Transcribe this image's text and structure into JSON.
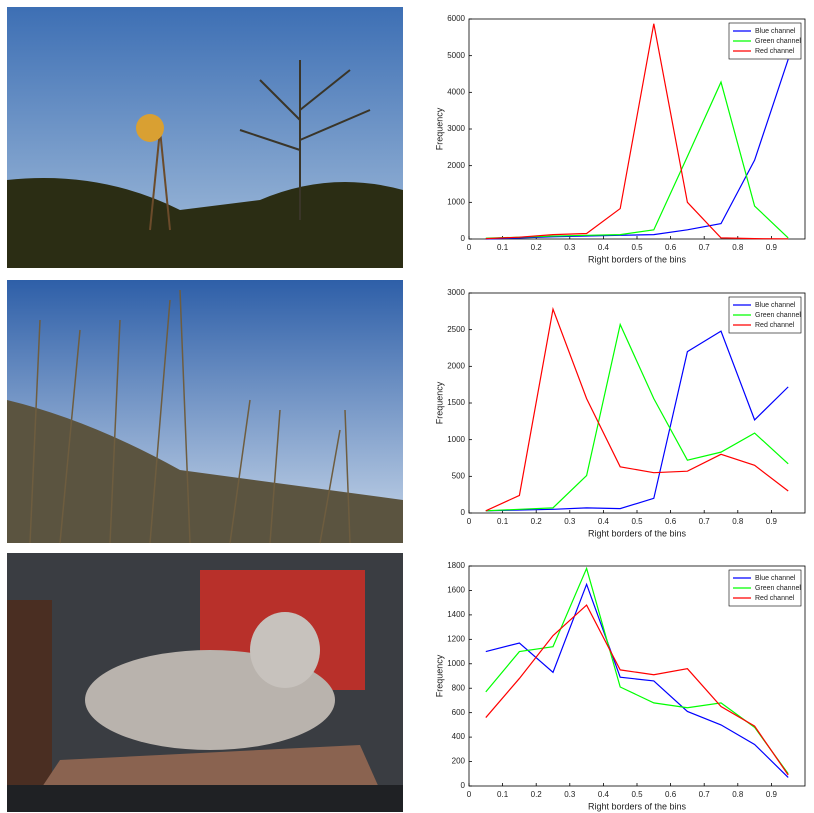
{
  "chart_data": [
    {
      "type": "line",
      "x": [
        0.05,
        0.15,
        0.25,
        0.35,
        0.45,
        0.55,
        0.65,
        0.75,
        0.85,
        0.95
      ],
      "xlabel": "Right borders of the bins",
      "ylabel": "Frequency",
      "xlim": [
        0,
        1
      ],
      "xticks": [
        0,
        0.1,
        0.2,
        0.3,
        0.4,
        0.5,
        0.6,
        0.7,
        0.8,
        0.9
      ],
      "ylim": [
        0,
        6000
      ],
      "yticks": [
        0,
        1000,
        2000,
        3000,
        4000,
        5000,
        6000
      ],
      "legend": "upper right",
      "series": [
        {
          "name": "Blue channel",
          "color": "#0000ff",
          "values": [
            0,
            30,
            60,
            80,
            100,
            120,
            250,
            420,
            2150,
            4900
          ]
        },
        {
          "name": "Green channel",
          "color": "#00ff00",
          "values": [
            20,
            50,
            80,
            100,
            120,
            250,
            2250,
            4280,
            900,
            30
          ]
        },
        {
          "name": "Red channel",
          "color": "#ff0000",
          "values": [
            10,
            50,
            120,
            150,
            830,
            5870,
            1000,
            30,
            10,
            5
          ]
        }
      ]
    },
    {
      "type": "line",
      "x": [
        0.05,
        0.15,
        0.25,
        0.35,
        0.45,
        0.55,
        0.65,
        0.75,
        0.85,
        0.95
      ],
      "xlabel": "Right borders of the bins",
      "ylabel": "Frequency",
      "xlim": [
        0,
        1
      ],
      "xticks": [
        0,
        0.1,
        0.2,
        0.3,
        0.4,
        0.5,
        0.6,
        0.7,
        0.8,
        0.9
      ],
      "ylim": [
        0,
        3000
      ],
      "yticks": [
        0,
        500,
        1000,
        1500,
        2000,
        2500,
        3000
      ],
      "legend": "upper right",
      "series": [
        {
          "name": "Blue channel",
          "color": "#0000ff",
          "values": [
            30,
            40,
            50,
            70,
            60,
            200,
            2200,
            2480,
            1270,
            1720
          ]
        },
        {
          "name": "Green channel",
          "color": "#00ff00",
          "values": [
            30,
            50,
            70,
            510,
            2570,
            1560,
            720,
            830,
            1090,
            670
          ]
        },
        {
          "name": "Red channel",
          "color": "#ff0000",
          "values": [
            30,
            240,
            2780,
            1560,
            630,
            550,
            570,
            800,
            650,
            300
          ]
        }
      ]
    },
    {
      "type": "line",
      "x": [
        0.05,
        0.15,
        0.25,
        0.35,
        0.45,
        0.55,
        0.65,
        0.75,
        0.85,
        0.95
      ],
      "xlabel": "Right borders of the bins",
      "ylabel": "Frequency",
      "xlim": [
        0,
        1
      ],
      "xticks": [
        0,
        0.1,
        0.2,
        0.3,
        0.4,
        0.5,
        0.6,
        0.7,
        0.8,
        0.9
      ],
      "ylim": [
        0,
        1800
      ],
      "yticks": [
        0,
        200,
        400,
        600,
        800,
        1000,
        1200,
        1400,
        1600,
        1800
      ],
      "legend": "upper right",
      "series": [
        {
          "name": "Blue channel",
          "color": "#0000ff",
          "values": [
            1100,
            1170,
            930,
            1650,
            890,
            860,
            610,
            500,
            340,
            70
          ]
        },
        {
          "name": "Green channel",
          "color": "#00ff00",
          "values": [
            770,
            1100,
            1140,
            1780,
            810,
            680,
            640,
            680,
            480,
            100
          ]
        },
        {
          "name": "Red channel",
          "color": "#ff0000",
          "values": [
            560,
            880,
            1230,
            1480,
            950,
            910,
            960,
            650,
            490,
            90
          ]
        }
      ]
    }
  ]
}
